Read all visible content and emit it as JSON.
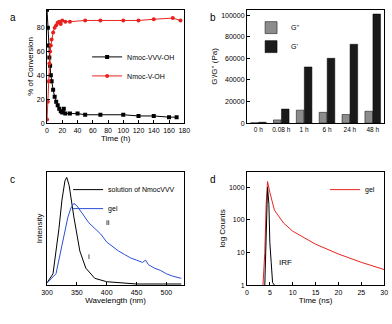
{
  "chart_data": [
    {
      "type": "line",
      "title": "a",
      "x_label": "Time (h)",
      "y_label": "% of Conversion",
      "xlim": [
        0,
        180
      ],
      "xticks": [
        0,
        20,
        40,
        60,
        80,
        100,
        120,
        140,
        160,
        180
      ],
      "ylim": [
        0,
        95
      ],
      "yticks": [
        0,
        20,
        40,
        60,
        80
      ],
      "grid": false,
      "legend": "right",
      "series": [
        {
          "name": "Nmoc-VVV-OH",
          "color": "#000000",
          "marker": "square",
          "line_style": "solid",
          "x": [
            0,
            1,
            2,
            3,
            4,
            5,
            6,
            8,
            10,
            12,
            14,
            16,
            18,
            20,
            22,
            24,
            30,
            40,
            50,
            70,
            100,
            120,
            140,
            160,
            170
          ],
          "values": [
            95,
            80,
            65,
            55,
            48,
            40,
            35,
            28,
            22,
            18,
            15,
            12,
            10,
            9,
            12,
            8,
            8,
            8,
            7,
            7,
            7,
            6,
            6,
            5,
            5
          ]
        },
        {
          "name": "Nmoc-V-OH",
          "color": "#e8231f",
          "marker": "circle",
          "line_style": "solid",
          "x": [
            0,
            1,
            2,
            3,
            4,
            5,
            6,
            8,
            10,
            12,
            14,
            16,
            18,
            20,
            24,
            30,
            50,
            70,
            100,
            120,
            140,
            165,
            175
          ],
          "values": [
            3,
            18,
            35,
            50,
            60,
            65,
            70,
            76,
            80,
            82,
            84,
            85,
            83,
            86,
            85,
            85,
            86,
            86,
            86,
            86,
            87,
            88,
            86
          ]
        }
      ]
    },
    {
      "type": "bar",
      "title": "b",
      "y_label": "G'/G'' (Pa)",
      "categories": [
        "0 h",
        "0.08 h",
        "1 h",
        "6 h",
        "24 h",
        "48 h"
      ],
      "ylim": [
        0,
        105000
      ],
      "yticks": [
        0,
        20000,
        40000,
        60000,
        80000,
        100000
      ],
      "grid": false,
      "legend": "upper left",
      "series": [
        {
          "name": "G''",
          "color": "#8c8c8c",
          "values": [
            300,
            3000,
            12000,
            10000,
            8000,
            11000
          ]
        },
        {
          "name": "G'",
          "color": "#1a1a1a",
          "values": [
            800,
            13000,
            52000,
            60000,
            73000,
            101000
          ]
        }
      ]
    },
    {
      "type": "line",
      "title": "c",
      "x_label": "Wavelength (nm)",
      "y_label": "Intensity",
      "xlim": [
        300,
        530
      ],
      "xticks": [
        300,
        350,
        400,
        450,
        500
      ],
      "ylim": [
        0,
        1
      ],
      "yticks": [],
      "tick_labels": "x",
      "grid": false,
      "legend": "upper right",
      "series": [
        {
          "name": "solution of NmocVVV",
          "color": "#000000",
          "line_style": "solid",
          "x": [
            300,
            310,
            320,
            325,
            330,
            333,
            337,
            345,
            355,
            365,
            380,
            400,
            450,
            525
          ],
          "values": [
            0.02,
            0.1,
            0.5,
            0.75,
            0.92,
            0.95,
            0.88,
            0.6,
            0.3,
            0.15,
            0.06,
            0.03,
            0.01,
            0.01
          ]
        },
        {
          "name": "gel",
          "color": "#2b4fd8",
          "line_style": "solid",
          "x": [
            300,
            315,
            325,
            335,
            340,
            345,
            350,
            360,
            370,
            380,
            390,
            400,
            410,
            420,
            430,
            440,
            450,
            460,
            465,
            470,
            480,
            490,
            500,
            510,
            525
          ],
          "values": [
            0.02,
            0.1,
            0.35,
            0.6,
            0.68,
            0.72,
            0.7,
            0.62,
            0.55,
            0.5,
            0.45,
            0.38,
            0.34,
            0.3,
            0.27,
            0.24,
            0.22,
            0.2,
            0.22,
            0.18,
            0.15,
            0.13,
            0.1,
            0.08,
            0.06
          ]
        }
      ],
      "annotations": [
        {
          "text": "i",
          "x": 365,
          "y": 0.25
        },
        {
          "text": "ii",
          "x": 395,
          "y": 0.55
        }
      ]
    },
    {
      "type": "line",
      "title": "d",
      "x_label": "Time (ns)",
      "y_label": "log Counts",
      "log": "y",
      "xlim": [
        0,
        30
      ],
      "xticks": [
        0,
        5,
        10,
        15,
        20,
        25,
        30
      ],
      "ylim": [
        1,
        3000
      ],
      "yticks": [
        1,
        10,
        100,
        1000
      ],
      "grid": false,
      "legend": "upper right",
      "series": [
        {
          "name": "gel",
          "color": "#e8231f",
          "line_style": "solid",
          "x": [
            3.5,
            3.9,
            4.2,
            4.5,
            5,
            6,
            8,
            10,
            15,
            20,
            25,
            30
          ],
          "values": [
            1,
            10,
            300,
            1500,
            700,
            200,
            80,
            45,
            18,
            9,
            5,
            3
          ]
        },
        {
          "color": "#000000",
          "line_style": "solid",
          "x": [
            3.9,
            4.2,
            4.5,
            4.8,
            5.0,
            5.3,
            5.6,
            6.0
          ],
          "values": [
            1,
            100,
            1000,
            300,
            20,
            5,
            1.2,
            1
          ]
        }
      ],
      "annotations": [
        {
          "text": "IRF",
          "x": 6.5,
          "y": 5
        }
      ]
    }
  ]
}
